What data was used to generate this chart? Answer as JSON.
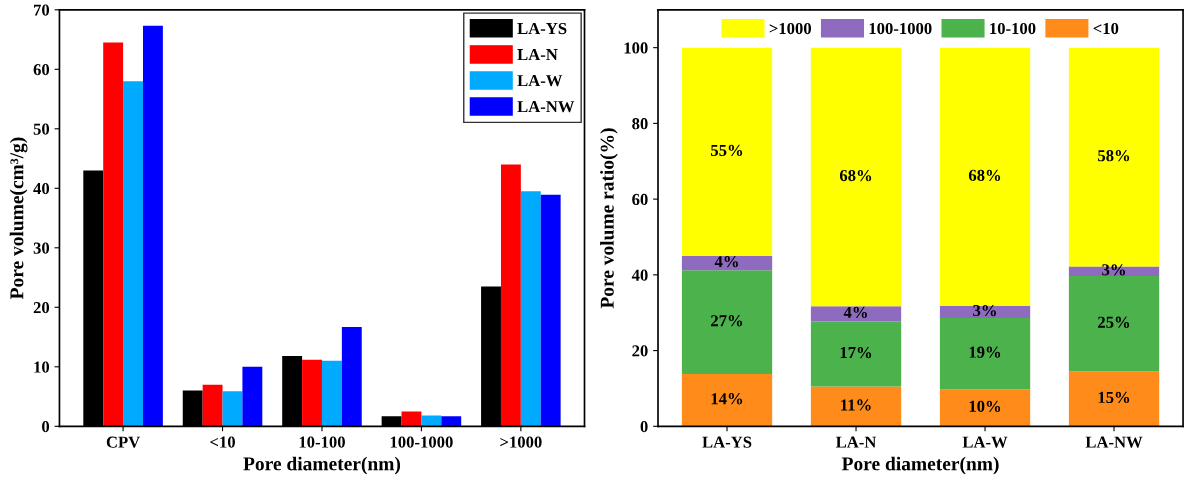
{
  "chart_data": [
    {
      "type": "bar",
      "xlabel": "Pore diameter(nm)",
      "ylabel": "Pore volume(cm³/g)",
      "categories": [
        "CPV",
        "<10",
        "10-100",
        "100-1000",
        ">1000"
      ],
      "series": [
        {
          "name": "LA-YS",
          "color": "#000000",
          "values": [
            43,
            6,
            11.8,
            1.7,
            23.5
          ]
        },
        {
          "name": "LA-N",
          "color": "#ff0000",
          "values": [
            64.5,
            7,
            11.2,
            2.5,
            44
          ]
        },
        {
          "name": "LA-W",
          "color": "#00aaff",
          "values": [
            58,
            5.9,
            11,
            1.8,
            39.5
          ]
        },
        {
          "name": "LA-NW",
          "color": "#0000ff",
          "values": [
            67.3,
            10,
            16.7,
            1.7,
            38.9
          ]
        }
      ],
      "ylim": [
        0,
        70
      ],
      "yticks": [
        0,
        10,
        20,
        30,
        40,
        50,
        60,
        70
      ],
      "legend": "top right",
      "grid": false
    },
    {
      "type": "bar",
      "stacked": true,
      "xlabel": "Pore diameter(nm)",
      "ylabel": "Pore volume ratio(%)",
      "categories": [
        "LA-YS",
        "LA-N",
        "LA-W",
        "LA-NW"
      ],
      "series": [
        {
          "name": "<10",
          "color": "#ff8c1a",
          "values": [
            13.8,
            10.5,
            9.8,
            14.5
          ],
          "value_labels": [
            "14%",
            "11%",
            "10%",
            "15%"
          ]
        },
        {
          "name": "10-100",
          "color": "#4cb24c",
          "values": [
            27.4,
            17.2,
            18.8,
            25.2
          ],
          "value_labels": [
            "27%",
            "17%",
            "19%",
            "25%"
          ]
        },
        {
          "name": "100-1000",
          "color": "#8e6bbf",
          "values": [
            3.8,
            4,
            3.2,
            2.5
          ],
          "value_labels": [
            "4%",
            "4%",
            "3%",
            "3%"
          ]
        },
        {
          "name": ">1000",
          "color": "#ffff00",
          "values": [
            55,
            68.3,
            68.2,
            57.8
          ],
          "value_labels": [
            "55%",
            "68%",
            "68%",
            "58%"
          ]
        }
      ],
      "ylim": [
        0,
        110
      ],
      "yticks": [
        0,
        20,
        40,
        60,
        80,
        100
      ],
      "legend": "top",
      "grid": false
    }
  ]
}
